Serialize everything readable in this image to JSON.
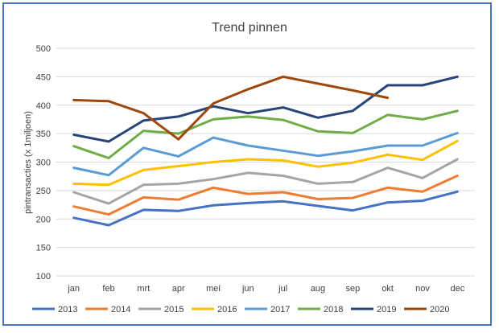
{
  "chart_data": {
    "type": "line",
    "title": "Trend pinnen",
    "xlabel": "",
    "ylabel": "pintransacties (x 1miljoen)",
    "ylim": [
      100,
      500
    ],
    "yticks": [
      100,
      150,
      200,
      250,
      300,
      350,
      400,
      450,
      500
    ],
    "grid": true,
    "legend": "bottom",
    "categories": [
      "jan",
      "feb",
      "mrt",
      "apr",
      "mei",
      "jun",
      "jul",
      "aug",
      "sep",
      "okt",
      "nov",
      "dec"
    ],
    "series": [
      {
        "name": "2013",
        "color": "#4472c4",
        "values": [
          202,
          189,
          216,
          214,
          224,
          228,
          231,
          223,
          215,
          229,
          232,
          248
        ]
      },
      {
        "name": "2014",
        "color": "#ed7d31",
        "values": [
          222,
          208,
          238,
          234,
          255,
          244,
          247,
          235,
          237,
          255,
          248,
          276
        ]
      },
      {
        "name": "2015",
        "color": "#a5a5a5",
        "values": [
          247,
          227,
          260,
          262,
          270,
          281,
          276,
          262,
          265,
          290,
          272,
          305
        ]
      },
      {
        "name": "2016",
        "color": "#ffc000",
        "values": [
          262,
          260,
          286,
          293,
          300,
          305,
          303,
          292,
          299,
          313,
          304,
          337
        ]
      },
      {
        "name": "2017",
        "color": "#5b9bd5",
        "values": [
          290,
          277,
          325,
          310,
          343,
          329,
          320,
          311,
          319,
          329,
          329,
          351
        ]
      },
      {
        "name": "2018",
        "color": "#70ad47",
        "values": [
          328,
          307,
          355,
          350,
          375,
          380,
          374,
          354,
          351,
          383,
          375,
          390
        ]
      },
      {
        "name": "2019",
        "color": "#264478",
        "values": [
          348,
          336,
          373,
          380,
          398,
          386,
          396,
          378,
          390,
          435,
          435,
          450
        ]
      },
      {
        "name": "2020",
        "color": "#9e480e",
        "values": [
          409,
          407,
          386,
          340,
          403,
          428,
          450,
          438,
          426,
          413,
          null,
          null
        ]
      }
    ]
  }
}
